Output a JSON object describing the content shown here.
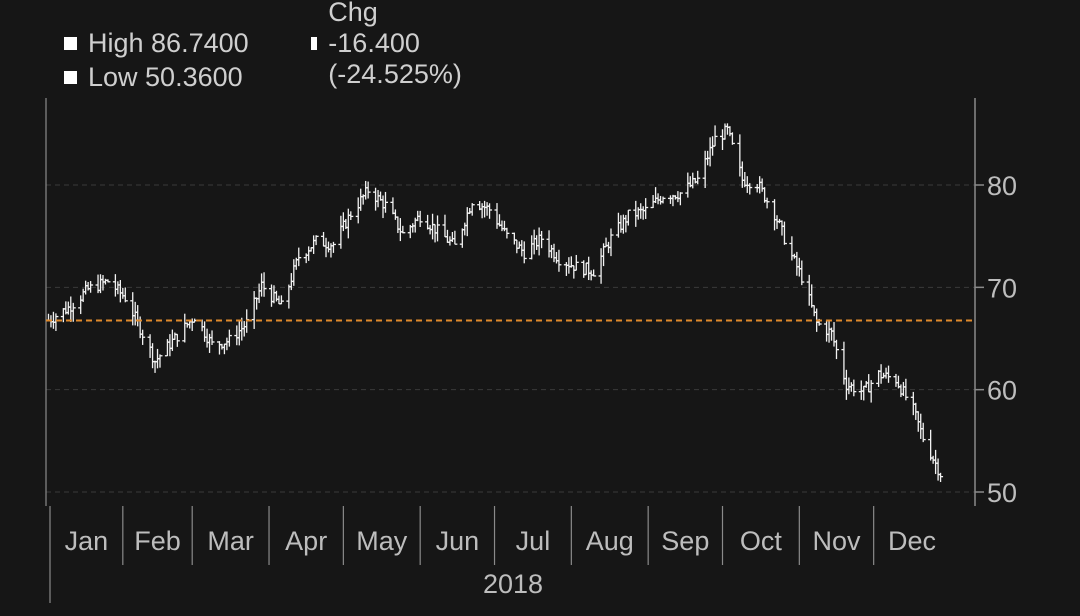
{
  "legend": {
    "high": "High 86.7400",
    "chg": "Chg -16.400 (-24.525%)",
    "low": "Low 50.3600"
  },
  "colors": {
    "background": "#161616",
    "bars": "#f2f2f2",
    "reference_line": "#e08a2c",
    "grid": "#3a3a3a",
    "axis": "#8a8a8a",
    "text": "#bdbdbd"
  },
  "chart_data": {
    "type": "ohlc",
    "year_label": "2018",
    "xlabel": "",
    "ylabel": "",
    "x_ticks": [
      "Jan",
      "Feb",
      "Mar",
      "Apr",
      "May",
      "Jun",
      "Jul",
      "Aug",
      "Sep",
      "Oct",
      "Nov",
      "Dec"
    ],
    "y_ticks": [
      50,
      60,
      70,
      80
    ],
    "ylim": [
      49.6,
      88.2
    ],
    "grid": true,
    "grid_style": "dashed horizontal",
    "y_axis_side": "right",
    "legend_position": "top-left",
    "reference_line": {
      "value": 66.76,
      "style": "dashed",
      "color": "#e08a2c"
    },
    "high": 86.74,
    "low": 50.36,
    "change": -16.4,
    "change_pct": -24.525,
    "close_series": {
      "dates": [
        "2018-01-02",
        "2018-01-10",
        "2018-01-18",
        "2018-01-26",
        "2018-02-02",
        "2018-02-08",
        "2018-02-14",
        "2018-02-22",
        "2018-03-02",
        "2018-03-09",
        "2018-03-16",
        "2018-03-23",
        "2018-03-29",
        "2018-04-06",
        "2018-04-13",
        "2018-04-20",
        "2018-04-27",
        "2018-05-04",
        "2018-05-11",
        "2018-05-18",
        "2018-05-25",
        "2018-06-01",
        "2018-06-08",
        "2018-06-15",
        "2018-06-22",
        "2018-06-29",
        "2018-07-06",
        "2018-07-13",
        "2018-07-20",
        "2018-07-27",
        "2018-08-03",
        "2018-08-10",
        "2018-08-17",
        "2018-08-24",
        "2018-08-31",
        "2018-09-07",
        "2018-09-14",
        "2018-09-21",
        "2018-09-28",
        "2018-10-03",
        "2018-10-09",
        "2018-10-15",
        "2018-10-22",
        "2018-10-29",
        "2018-11-02",
        "2018-11-08",
        "2018-11-14",
        "2018-11-20",
        "2018-11-27",
        "2018-12-03",
        "2018-12-10",
        "2018-12-17",
        "2018-12-21",
        "2018-12-28"
      ],
      "values": [
        66.8,
        68.0,
        69.8,
        70.6,
        69.0,
        66.0,
        62.8,
        65.0,
        67.2,
        64.4,
        64.8,
        66.5,
        70.2,
        68.1,
        73.0,
        74.5,
        74.2,
        77.2,
        79.5,
        78.0,
        75.2,
        77.0,
        75.5,
        74.0,
        78.5,
        77.6,
        75.0,
        73.4,
        74.8,
        72.8,
        72.0,
        71.6,
        74.8,
        77.0,
        77.5,
        79.0,
        79.2,
        80.5,
        84.5,
        85.3,
        80.5,
        80.2,
        77.2,
        73.0,
        71.0,
        66.5,
        65.5,
        60.5,
        59.8,
        61.5,
        61.0,
        58.0,
        55.3,
        51.8
      ]
    }
  }
}
